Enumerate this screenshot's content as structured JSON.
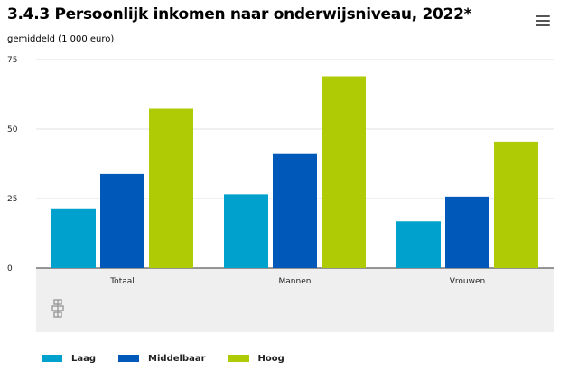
{
  "chart_data": {
    "type": "bar",
    "title": "3.4.3 Persoonlijk inkomen naar onderwijsniveau, 2022*",
    "ylabel": "gemiddeld (1 000 euro)",
    "xlabel": "",
    "categories": [
      "Totaal",
      "Mannen",
      "Vrouwen"
    ],
    "series": [
      {
        "name": "Laag",
        "color": "#00a1cd",
        "values": [
          21.5,
          26.5,
          16.8
        ]
      },
      {
        "name": "Middelbaar",
        "color": "#0058b8",
        "values": [
          33.8,
          41.0,
          25.7
        ]
      },
      {
        "name": "Hoog",
        "color": "#afcb05",
        "values": [
          57.3,
          69.0,
          45.5
        ]
      }
    ],
    "ylim": [
      0,
      75
    ],
    "yticks": [
      0,
      25,
      50,
      75
    ],
    "grid": true,
    "legend_position": "bottom-left"
  },
  "icons": {
    "menu": "hamburger-menu-icon",
    "logo": "cbs-logo"
  }
}
